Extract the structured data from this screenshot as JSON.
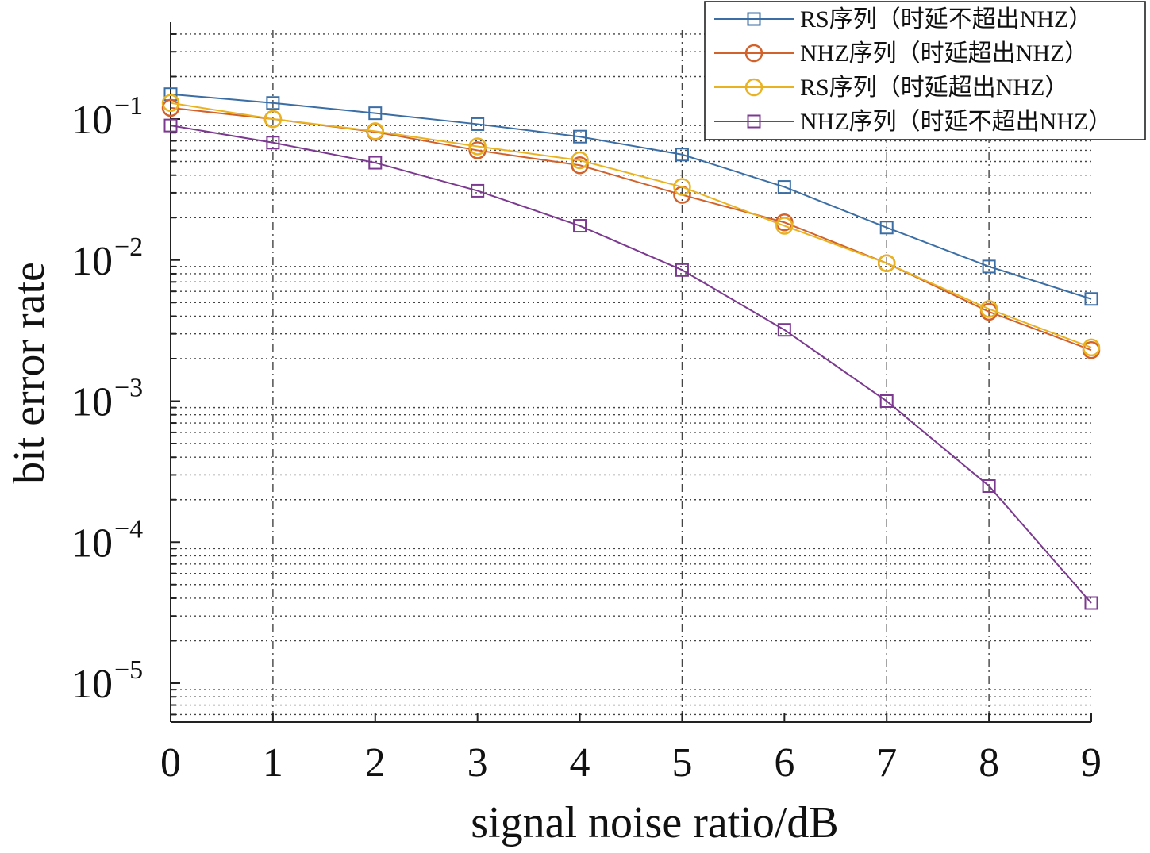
{
  "chart_data": {
    "type": "line",
    "xlabel": "signal noise ratio/dB",
    "ylabel": "bit error rate",
    "x": [
      0,
      1,
      2,
      3,
      4,
      5,
      6,
      7,
      8,
      9
    ],
    "xlim": [
      0,
      9
    ],
    "ylim": [
      5e-06,
      0.5
    ],
    "yscale": "log",
    "xticks": [
      "0",
      "1",
      "2",
      "3",
      "4",
      "5",
      "6",
      "7",
      "8",
      "9"
    ],
    "yticks": [
      {
        "value": 0.1,
        "base": "10",
        "exp": "−1"
      },
      {
        "value": 0.01,
        "base": "10",
        "exp": "−2"
      },
      {
        "value": 0.001,
        "base": "10",
        "exp": "−3"
      },
      {
        "value": 0.0001,
        "base": "10",
        "exp": "−4"
      },
      {
        "value": 1e-05,
        "base": "10",
        "exp": "−5"
      }
    ],
    "grid": "dotted minor y-grid, dashed major x-grid at selected ticks",
    "legend_position": "top-right",
    "series": [
      {
        "name": "RS序列（时延不超出NHZ）",
        "marker": "square",
        "color": "#3a6ea5",
        "values": [
          0.15,
          0.13,
          0.11,
          0.092,
          0.075,
          0.056,
          0.033,
          0.017,
          0.009,
          0.0053
        ]
      },
      {
        "name": "NHZ序列（时延超出NHZ）",
        "marker": "circle",
        "color": "#d2622b",
        "values": [
          0.12,
          0.1,
          0.081,
          0.06,
          0.047,
          0.029,
          0.0185,
          0.0095,
          0.0043,
          0.0023
        ]
      },
      {
        "name": "RS序列（时延超出NHZ）",
        "marker": "circle",
        "color": "#e8b222",
        "values": [
          0.13,
          0.1,
          0.082,
          0.064,
          0.051,
          0.033,
          0.0175,
          0.0095,
          0.0045,
          0.0024
        ]
      },
      {
        "name": "NHZ序列（时延不超出NHZ）",
        "marker": "square",
        "color": "#7b3a8f",
        "values": [
          0.09,
          0.068,
          0.049,
          0.031,
          0.0175,
          0.0085,
          0.0032,
          0.001,
          0.00025,
          3.7e-05
        ]
      }
    ]
  }
}
